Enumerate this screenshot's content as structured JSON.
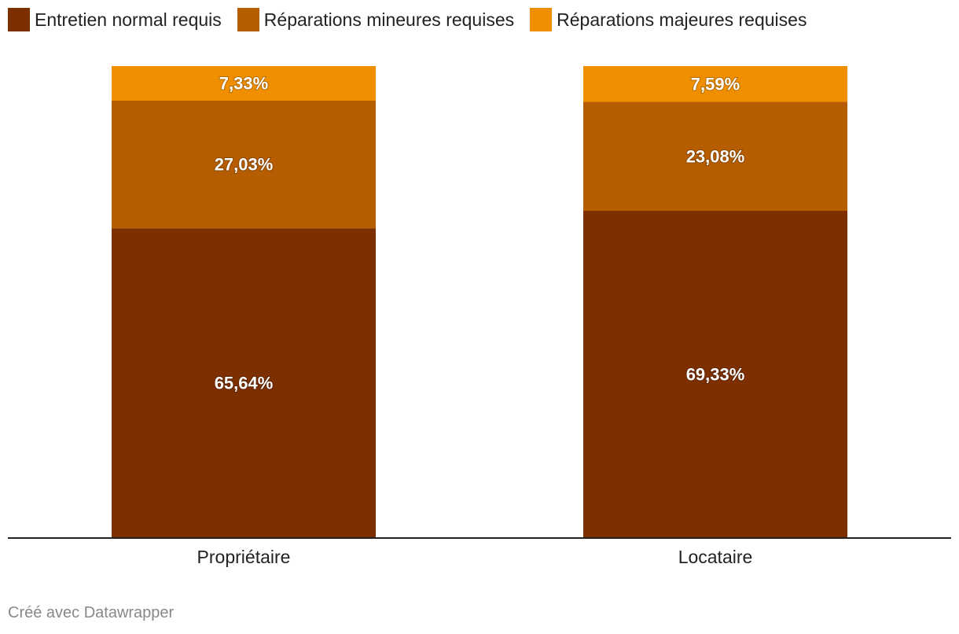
{
  "chart_data": {
    "type": "bar",
    "stacked": true,
    "categories": [
      "Propriétaire",
      "Locataire"
    ],
    "series": [
      {
        "name": "Entretien normal requis",
        "color": "#7d2f00",
        "values": [
          65.64,
          69.33
        ],
        "labels": [
          "65,64%",
          "69,33%"
        ]
      },
      {
        "name": "Réparations mineures requises",
        "color": "#b55d00",
        "values": [
          27.03,
          23.08
        ],
        "labels": [
          "27,03%",
          "23,08%"
        ]
      },
      {
        "name": "Réparations majeures requises",
        "color": "#ef8f00",
        "values": [
          7.33,
          7.59
        ],
        "labels": [
          "7,33%",
          "7,59%"
        ]
      }
    ],
    "ylim": [
      0,
      100
    ],
    "legend": "top-left",
    "grid": false
  },
  "footer": {
    "credit": "Créé avec Datawrapper"
  }
}
